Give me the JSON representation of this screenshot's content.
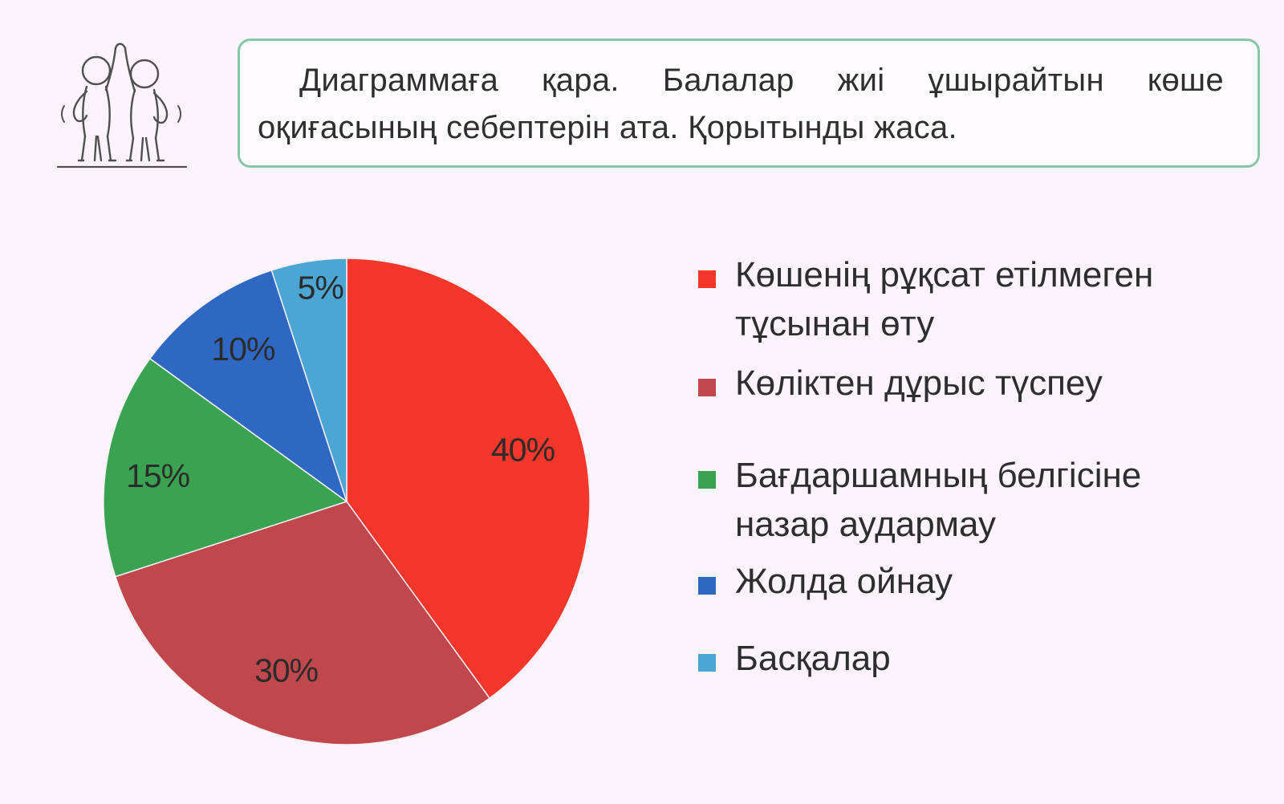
{
  "icon": {
    "name": "two-children-high-five-icon"
  },
  "instruction": {
    "text": "Диаграммаға қара. Балалар жиі ұшырайтын көше оқиғасының себептерін ата. Қорытынды жаса."
  },
  "chart_data": {
    "type": "pie",
    "slices": [
      {
        "label": "Көшенің рұқсат етілмеген тұсынан өту",
        "value": 40,
        "value_label": "40%",
        "color": "#f5362a"
      },
      {
        "label": "Көліктен дұрыс түспеу",
        "value": 30,
        "value_label": "30%",
        "color": "#c0474b"
      },
      {
        "label": "Бағдаршамның белгісіне назар аудармау",
        "value": 15,
        "value_label": "15%",
        "color": "#3aa351"
      },
      {
        "label": "Жолда ойнау",
        "value": 10,
        "value_label": "10%",
        "color": "#2f68c2"
      },
      {
        "label": "Басқалар",
        "value": 5,
        "value_label": "5%",
        "color": "#4ca6d4"
      }
    ],
    "start": "12 o'clock",
    "direction": "clockwise",
    "legend_position": "right"
  }
}
